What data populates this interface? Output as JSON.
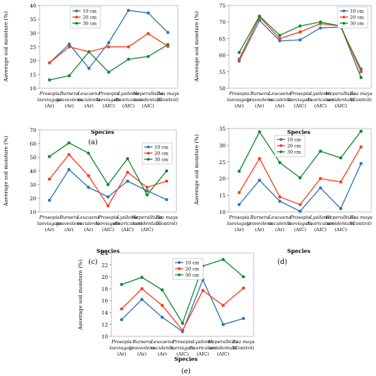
{
  "chart_data": [
    {
      "type": "line",
      "panel_label": "(a)",
      "ylabel": "Aaverage soil moisture (%)",
      "xlabel": "Species",
      "ylim": [
        10,
        40
      ],
      "yticks": [
        10,
        15,
        20,
        25,
        30,
        35,
        40
      ],
      "legend_position": "top-center",
      "categories": [
        [
          "Prosopis",
          "laeviagata",
          "(Ar)"
        ],
        [
          "Bursera",
          "graveolens",
          "(Ar)"
        ],
        [
          "Leucaena",
          "esculenta",
          "(Ar)"
        ],
        [
          "Prosopis",
          "laeviagata",
          "(AIC)"
        ],
        [
          "Lysiloma",
          "divaricatum",
          "(AIC)"
        ],
        [
          "Heperalbizia",
          "accidentalis",
          "(AIC)"
        ],
        [
          "Zea mays",
          "(Control)"
        ]
      ],
      "series": [
        {
          "name": "10 cm",
          "values": [
            19.2,
            26,
            17.2,
            26.5,
            38.2,
            37.3,
            30.2
          ]
        },
        {
          "name": "20 cm",
          "values": [
            19.2,
            25,
            23.2,
            25,
            25,
            29.8,
            25.2
          ]
        },
        {
          "name": "30 cm",
          "values": [
            13,
            14.5,
            23.2,
            15.8,
            20.5,
            21.5,
            25.8
          ]
        }
      ]
    },
    {
      "type": "line",
      "panel_label": "(b)",
      "ylabel": "Aaverage soil moisture (%)",
      "xlabel": "Species",
      "ylim": [
        50,
        75
      ],
      "yticks": [
        50,
        55,
        60,
        65,
        70,
        75
      ],
      "legend_position": "top-right",
      "categories": [
        [
          "Prosopis",
          "laeviagata",
          "(Ar)"
        ],
        [
          "Bursera",
          "graveolens",
          "(Ar)"
        ],
        [
          "Leucaena",
          "esculenta",
          "(Ar)"
        ],
        [
          "Prosopis",
          "laeviagata",
          "(AIC)"
        ],
        [
          "Lysiloma",
          "divaricatum",
          "(AIC)"
        ],
        [
          "Heperalbizia",
          "accidentalis",
          "(AIC)"
        ],
        [
          "Zea mays",
          "(Control)"
        ]
      ],
      "series": [
        {
          "name": "10 cm",
          "values": [
            58.2,
            70.5,
            64.3,
            64.6,
            68.2,
            68.5,
            55.8
          ]
        },
        {
          "name": "20 cm",
          "values": [
            58.8,
            71.5,
            65,
            67,
            69.5,
            68.8,
            55
          ]
        },
        {
          "name": "30 cm",
          "values": [
            60.8,
            71.8,
            66,
            68.8,
            70,
            68.8,
            53.2
          ]
        }
      ]
    },
    {
      "type": "line",
      "panel_label": "(c)",
      "ylabel": "Aaverage soil moisture (%)",
      "xlabel": "Species",
      "ylim": [
        10,
        70
      ],
      "yticks": [
        10,
        20,
        30,
        40,
        50,
        60,
        70
      ],
      "legend_position": "top-right",
      "categories": [
        [
          "Prosopis",
          "laeviagata",
          "(Ar)"
        ],
        [
          "Bursera",
          "graveolens",
          "(Ar)"
        ],
        [
          "Leucaena",
          "esculenta",
          "(Ar)"
        ],
        [
          "Prosopis",
          "laeviagata",
          "(AIC)"
        ],
        [
          "Lysiloma",
          "divaricatum",
          "(AIC)"
        ],
        [
          "Heperalbizia",
          "accidentalis",
          "(AIC)"
        ],
        [
          "Zea mays",
          "(Control)"
        ]
      ],
      "series": [
        {
          "name": "10 cm",
          "values": [
            18.5,
            41,
            28,
            21,
            32.5,
            25.5,
            19
          ]
        },
        {
          "name": "20 cm",
          "values": [
            34,
            52,
            36.5,
            14.5,
            39,
            28,
            32.5
          ]
        },
        {
          "name": "30 cm",
          "values": [
            50.5,
            60.5,
            53,
            30,
            49,
            22.5,
            40
          ]
        }
      ]
    },
    {
      "type": "line",
      "panel_label": "(d)",
      "ylabel": "Aaverage soil moisture (%)",
      "xlabel": "Species",
      "ylim": [
        10,
        35
      ],
      "yticks": [
        10,
        15,
        20,
        25,
        30,
        35
      ],
      "legend_position": "top-left",
      "categories": [
        [
          "Prosopis",
          "laeviagata",
          "(Ar)"
        ],
        [
          "Bursera",
          "graveolens",
          "(Ar)"
        ],
        [
          "Leucaena",
          "esculenta",
          "(Ar)"
        ],
        [
          "Prosopis",
          "laeviagata",
          "(AIC)"
        ],
        [
          "Lysiloma",
          "divaricatum",
          "(AIC)"
        ],
        [
          "Heperalbizia",
          "accidentalis",
          "(AIC)"
        ],
        [
          "Zea mays",
          "(Control)"
        ]
      ],
      "series": [
        {
          "name": "10 cm",
          "values": [
            12.2,
            19.5,
            13.2,
            10.2,
            17.2,
            11,
            24.5
          ]
        },
        {
          "name": "20 cm",
          "values": [
            15.8,
            26,
            14.5,
            12.2,
            20,
            19,
            29.5
          ]
        },
        {
          "name": "30 cm",
          "values": [
            22.2,
            34,
            24.8,
            20.2,
            28.2,
            26.2,
            34.2
          ]
        }
      ]
    },
    {
      "type": "line",
      "panel_label": "(e)",
      "ylabel": "Aaverage soil moisture (%)",
      "xlabel": "Species",
      "ylim": [
        10,
        24
      ],
      "yticks": [
        10,
        12,
        14,
        16,
        18,
        20,
        22,
        24
      ],
      "legend_position": "top-center",
      "categories": [
        [
          "Prosopis",
          "laeviagata",
          "(Ar)"
        ],
        [
          "Bursera",
          "graveolens",
          "(Ar)"
        ],
        [
          "Leucaena",
          "esculenta",
          "(Ar)"
        ],
        [
          "Prosopis",
          "laeviagata",
          "(AIC)"
        ],
        [
          "Lysiloma",
          "divaricatum",
          "(AIC)"
        ],
        [
          "Heperalbizia",
          "accidentalis",
          "(AIC)"
        ],
        [
          "Zea mays",
          "(Control)"
        ]
      ],
      "series": [
        {
          "name": "10 cm",
          "values": [
            12.8,
            16.2,
            13.2,
            10.8,
            19.5,
            12,
            13
          ]
        },
        {
          "name": "20 cm",
          "values": [
            14.6,
            18,
            15.2,
            11,
            17.7,
            15.2,
            18.1
          ]
        },
        {
          "name": "30 cm",
          "values": [
            18.7,
            19.9,
            17.8,
            12.2,
            21.8,
            22.9,
            20
          ]
        }
      ]
    }
  ],
  "colors": {
    "10 cm": "#2e75b6",
    "20 cm": "#ff3b1f",
    "30 cm": "#118a2e"
  }
}
